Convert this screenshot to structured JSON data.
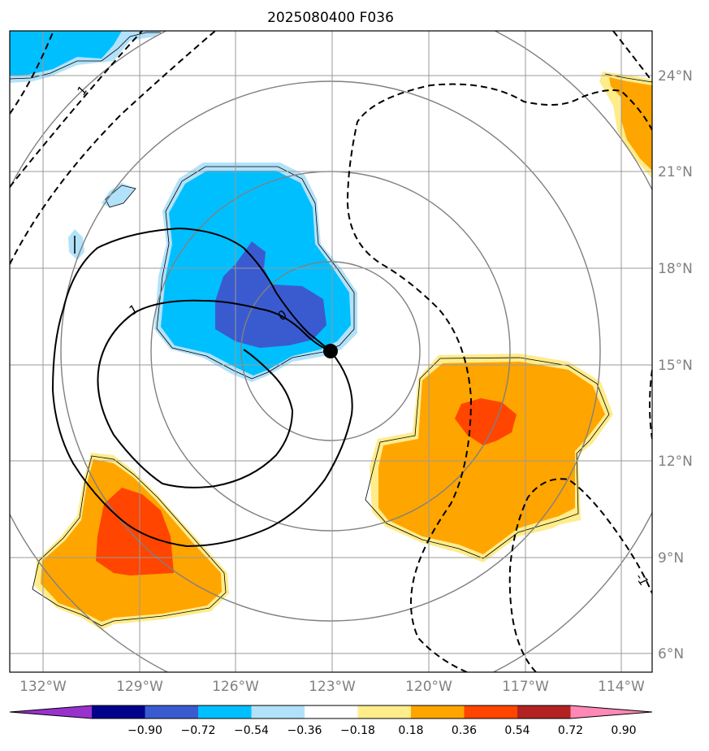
{
  "title": "2025080400 F036",
  "map": {
    "projection_center": {
      "lon": "123°W",
      "lat": "15.5°N"
    },
    "lat_labels": [
      "24°N",
      "21°N",
      "18°N",
      "15°N",
      "12°N",
      "9°N",
      "6°N"
    ],
    "lon_labels": [
      "132°W",
      "129°W",
      "126°W",
      "123°W",
      "120°W",
      "117°W",
      "114°W"
    ],
    "range_rings_count": 4,
    "contour_labels": [
      "1",
      "1",
      "0",
      "-1"
    ],
    "center_marker": "storm-center-dot"
  },
  "colorbar": {
    "ticks": [
      "−0.90",
      "−0.72",
      "−0.54",
      "−0.36",
      "−0.18",
      "0.18",
      "0.36",
      "0.54",
      "0.72",
      "0.90"
    ],
    "colors": [
      "#9932cc",
      "#00008b",
      "#3a5bd0",
      "#00bfff",
      "#b2e2fa",
      "#ffffff",
      "#ffec8b",
      "#ffa500",
      "#ff4500",
      "#b22222",
      "#ff88b4"
    ]
  }
}
